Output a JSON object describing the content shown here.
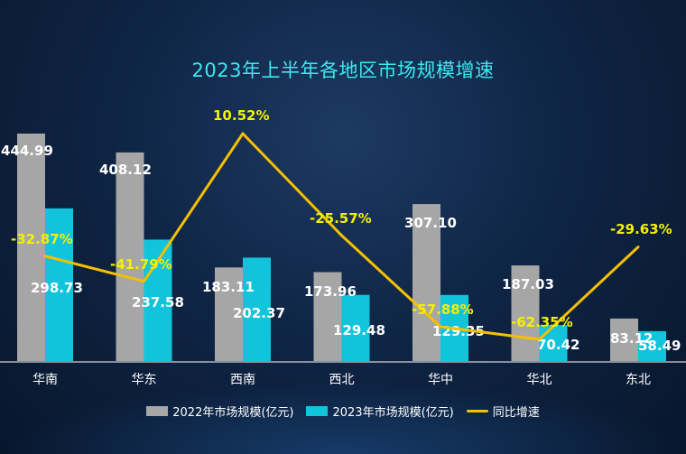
{
  "chart_data": {
    "type": "bar",
    "title": "2023年上半年各地区市场规模增速",
    "categories": [
      "华南",
      "华东",
      "西南",
      "西北",
      "华中",
      "华北",
      "东北"
    ],
    "series": [
      {
        "name": "2022年市场规模(亿元)",
        "type": "bar",
        "color": "#a6a6a6",
        "values": [
          444.99,
          408.12,
          183.11,
          173.96,
          307.1,
          187.03,
          83.12
        ],
        "labels": [
          "444.99",
          "408.12",
          "183.11",
          "173.96",
          "307.10",
          "187.03",
          "83.12"
        ]
      },
      {
        "name": "2023年市场规模(亿元)",
        "type": "bar",
        "color": "#12c3dc",
        "values": [
          298.73,
          237.58,
          202.37,
          129.48,
          129.35,
          70.42,
          58.49
        ],
        "labels": [
          "298.73",
          "237.58",
          "202.37",
          "129.48",
          "129.35",
          "70.42",
          "58.49"
        ]
      },
      {
        "name": "同比增速",
        "type": "line",
        "color": "#f5c000",
        "values": [
          -32.87,
          -41.79,
          10.52,
          -25.57,
          -57.88,
          -62.35,
          -29.63
        ],
        "labels": [
          "-32.87%",
          "-41.79%",
          "10.52%",
          "-25.57%",
          "-57.88%",
          "-62.35%",
          "-29.63%"
        ]
      }
    ],
    "ylim": [
      0,
      470
    ],
    "y2lim": [
      -70,
      15
    ],
    "grid": false,
    "legend": "bottom"
  },
  "colors": {
    "title": "#3ee8f0",
    "line_label": "#f5f000",
    "bar_label": "#ffffff"
  }
}
